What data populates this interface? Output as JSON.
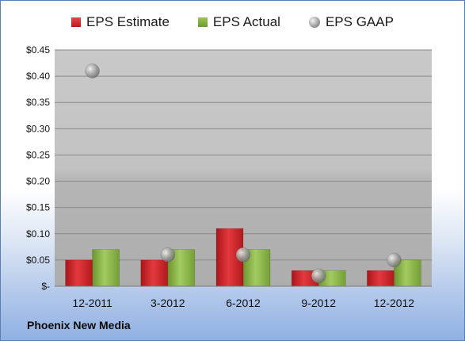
{
  "chart_data": {
    "type": "bar",
    "categories": [
      "12-2011",
      "3-2012",
      "6-2012",
      "9-2012",
      "12-2012"
    ],
    "series": [
      {
        "name": "EPS Estimate",
        "kind": "bar",
        "color": "#c82327",
        "values": [
          0.05,
          0.05,
          0.11,
          0.03,
          0.03
        ]
      },
      {
        "name": "EPS Actual",
        "kind": "bar",
        "color": "#86b347",
        "values": [
          0.07,
          0.07,
          0.07,
          0.03,
          0.05
        ]
      },
      {
        "name": "EPS GAAP",
        "kind": "marker",
        "color": "#9a9a9a",
        "values": [
          0.41,
          0.06,
          0.06,
          0.02,
          0.05
        ]
      }
    ],
    "yticks": [
      "$-",
      "$0.05",
      "$0.10",
      "$0.15",
      "$0.20",
      "$0.25",
      "$0.30",
      "$0.35",
      "$0.40",
      "$0.45"
    ],
    "ylim": [
      0,
      0.45
    ],
    "grid": true,
    "legend_position": "top"
  },
  "footer": {
    "company": "Phoenix New Media"
  }
}
